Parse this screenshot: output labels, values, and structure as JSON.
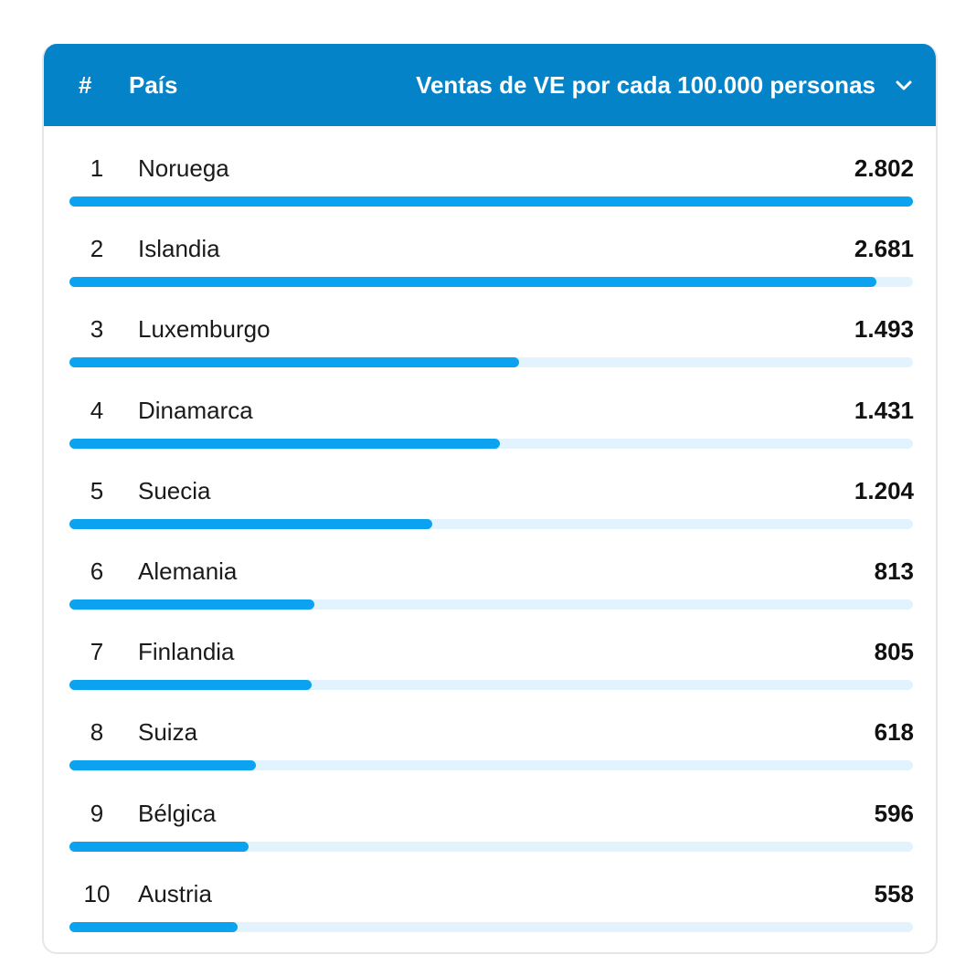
{
  "header": {
    "rank_label": "#",
    "country_label": "País",
    "metric_label": "Ventas de VE por cada 100.000 personas"
  },
  "colors": {
    "header_bg": "#0583c9",
    "bar_fill": "#0ba2ef",
    "bar_track": "#e3f3fd"
  },
  "chart_data": {
    "type": "bar",
    "orientation": "horizontal",
    "ylabel": "Ventas de VE por cada 100.000 personas",
    "categories": [
      "Noruega",
      "Islandia",
      "Luxemburgo",
      "Dinamarca",
      "Suecia",
      "Alemania",
      "Finlandia",
      "Suiza",
      "Bélgica",
      "Austria"
    ],
    "values": [
      2802,
      2681,
      1493,
      1431,
      1204,
      813,
      805,
      618,
      596,
      558
    ],
    "xlim": [
      0,
      2802
    ]
  },
  "rows": [
    {
      "rank": "1",
      "country": "Noruega",
      "value": "2.802"
    },
    {
      "rank": "2",
      "country": "Islandia",
      "value": "2.681"
    },
    {
      "rank": "3",
      "country": "Luxemburgo",
      "value": "1.493"
    },
    {
      "rank": "4",
      "country": "Dinamarca",
      "value": "1.431"
    },
    {
      "rank": "5",
      "country": "Suecia",
      "value": "1.204"
    },
    {
      "rank": "6",
      "country": "Alemania",
      "value": "813"
    },
    {
      "rank": "7",
      "country": "Finlandia",
      "value": "805"
    },
    {
      "rank": "8",
      "country": "Suiza",
      "value": "618"
    },
    {
      "rank": "9",
      "country": "Bélgica",
      "value": "596"
    },
    {
      "rank": "10",
      "country": "Austria",
      "value": "558"
    }
  ]
}
